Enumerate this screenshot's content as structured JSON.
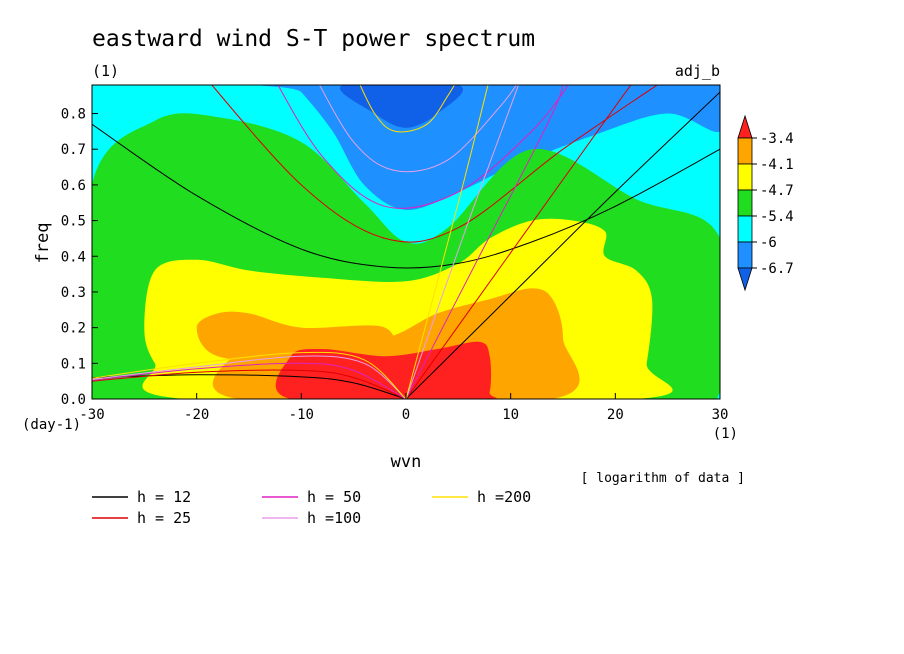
{
  "chart_data": {
    "type": "heatmap",
    "title": "eastward wind S-T power spectrum",
    "subtitle_left": "(1)",
    "subtitle_right": "adj_b",
    "xlabel": "wvn",
    "ylabel": "freq",
    "x_unit": "(1)",
    "y_unit": "(day-1)",
    "note": "[ logarithm of data ]",
    "xlim": [
      -30,
      30
    ],
    "ylim": [
      0,
      0.88
    ],
    "x_ticks": [
      "-30",
      "-20",
      "-10",
      "0",
      "10",
      "20",
      "30"
    ],
    "x_tick_values": [
      -30,
      -20,
      -10,
      0,
      10,
      20,
      30
    ],
    "y_ticks": [
      "0.0",
      "0.1",
      "0.2",
      "0.3",
      "0.4",
      "0.5",
      "0.6",
      "0.7",
      "0.8"
    ],
    "y_tick_values": [
      0,
      0.1,
      0.2,
      0.3,
      0.4,
      0.5,
      0.6,
      0.7,
      0.8
    ],
    "colorbar": {
      "levels": [
        "-3.4",
        "-4.1",
        "-4.7",
        "-5.4",
        "-6",
        "-6.7"
      ],
      "level_values": [
        -3.4,
        -4.1,
        -4.7,
        -5.4,
        -6.0,
        -6.7
      ],
      "colors": [
        "#ff2020",
        "#ffa500",
        "#ffff00",
        "#20dd20",
        "#00ffff",
        "#1e90ff",
        "#1060e8"
      ]
    },
    "regions": [
      {
        "level_index": 1,
        "color": "#00ffff",
        "points": [
          [
            -30,
            0.88
          ],
          [
            30,
            0.88
          ],
          [
            30,
            0.45
          ],
          [
            22,
            0.56
          ],
          [
            12,
            0.64
          ],
          [
            4,
            0.48
          ],
          [
            0,
            0.44
          ],
          [
            -5,
            0.52
          ],
          [
            -15,
            0.7
          ],
          [
            -24,
            0.7
          ],
          [
            -30,
            0.6
          ]
        ]
      },
      {
        "level_index": 2,
        "color": "#1e90ff",
        "points": [
          [
            -11,
            0.88
          ],
          [
            30,
            0.88
          ],
          [
            30,
            0.75
          ],
          [
            25,
            0.8
          ],
          [
            18,
            0.74
          ],
          [
            10,
            0.65
          ],
          [
            5,
            0.58
          ],
          [
            0,
            0.53
          ],
          [
            -4,
            0.6
          ],
          [
            -7,
            0.75
          ],
          [
            -10,
            0.86
          ]
        ]
      },
      {
        "level_index": 3,
        "color": "#1060e8",
        "points": [
          [
            -6,
            0.88
          ],
          [
            5,
            0.88
          ],
          [
            3,
            0.8
          ],
          [
            0,
            0.76
          ],
          [
            -3,
            0.8
          ]
        ]
      },
      {
        "level_index": 3,
        "color": "#1e90ff",
        "points": [
          [
            18,
            0.88
          ],
          [
            23,
            0.88
          ],
          [
            20,
            0.85
          ]
        ]
      },
      {
        "level_index": 4,
        "color": "#20dd20",
        "points": [
          [
            -30,
            0
          ],
          [
            22,
            0
          ],
          [
            30,
            0.02
          ],
          [
            30,
            0.45
          ],
          [
            22,
            0.56
          ],
          [
            12,
            0.7
          ],
          [
            4,
            0.48
          ],
          [
            0,
            0.44
          ],
          [
            -4,
            0.55
          ],
          [
            -10,
            0.72
          ],
          [
            -18,
            0.79
          ],
          [
            -24,
            0.78
          ],
          [
            -30,
            0.6
          ]
        ]
      },
      {
        "level_index": 5,
        "color": "#ffff00",
        "points": [
          [
            -21,
            0
          ],
          [
            22,
            0
          ],
          [
            23,
            0.1
          ],
          [
            23.5,
            0.28
          ],
          [
            22,
            0.36
          ],
          [
            19,
            0.4
          ],
          [
            19,
            0.47
          ],
          [
            16,
            0.5
          ],
          [
            12,
            0.5
          ],
          [
            8,
            0.45
          ],
          [
            5,
            0.38
          ],
          [
            0,
            0.33
          ],
          [
            -8,
            0.34
          ],
          [
            -15,
            0.36
          ],
          [
            -20,
            0.39
          ],
          [
            -24,
            0.36
          ],
          [
            -25,
            0.2
          ],
          [
            -24,
            0.1
          ]
        ]
      },
      {
        "level_index": 6,
        "color": "#ffa500",
        "points": [
          [
            -16,
            0.13
          ],
          [
            -10,
            0.14
          ],
          [
            -2,
            0.17
          ],
          [
            3,
            0.24
          ],
          [
            8,
            0.28
          ],
          [
            12,
            0.31
          ],
          [
            14,
            0.28
          ],
          [
            15,
            0.17
          ],
          [
            14,
            0
          ],
          [
            -16,
            0
          ]
        ]
      },
      {
        "level_index": 7,
        "color": "#ffa500",
        "points": [
          [
            -20,
            0.2
          ],
          [
            -18,
            0.24
          ],
          [
            -15,
            0.24
          ],
          [
            -10,
            0.2
          ],
          [
            -2,
            0.2
          ],
          [
            -2,
            0.1
          ],
          [
            -10,
            0.1
          ],
          [
            -18,
            0.12
          ]
        ]
      },
      {
        "level_index": 8,
        "color": "#ff2020",
        "points": [
          [
            -11,
            0.12
          ],
          [
            -8,
            0.14
          ],
          [
            -2,
            0.12
          ],
          [
            3,
            0.14
          ],
          [
            7,
            0.16
          ],
          [
            8,
            0.12
          ],
          [
            8,
            0.02
          ],
          [
            7,
            0
          ],
          [
            -11,
            0
          ]
        ]
      }
    ],
    "curves": [
      {
        "name": "h = 12",
        "color": "#000000",
        "points": [
          [
            -30,
            0.77
          ],
          [
            -20,
            0.57
          ],
          [
            -10,
            0.42
          ],
          [
            -2,
            0.37
          ],
          [
            5,
            0.38
          ],
          [
            12,
            0.44
          ],
          [
            20,
            0.54
          ],
          [
            30,
            0.7
          ]
        ]
      },
      {
        "name": "h = 12",
        "color": "#000000",
        "points": [
          [
            -30,
            0.06
          ],
          [
            -20,
            0.068
          ],
          [
            -10,
            0.062
          ],
          [
            -5,
            0.045
          ],
          [
            0,
            0
          ]
        ]
      },
      {
        "name": "h = 12",
        "color": "#000000",
        "points": [
          [
            0,
            0
          ],
          [
            10,
            0.29
          ],
          [
            20,
            0.58
          ],
          [
            30,
            0.86
          ]
        ]
      },
      {
        "name": "h = 25",
        "color": "#dd0000",
        "points": [
          [
            -20,
            0.93
          ],
          [
            -10,
            0.6
          ],
          [
            -2,
            0.45
          ],
          [
            5,
            0.48
          ],
          [
            15,
            0.7
          ],
          [
            25,
            0.9
          ]
        ]
      },
      {
        "name": "h = 25",
        "color": "#dd0000",
        "points": [
          [
            -30,
            0.05
          ],
          [
            -20,
            0.075
          ],
          [
            -10,
            0.08
          ],
          [
            -5,
            0.06
          ],
          [
            0,
            0
          ]
        ]
      },
      {
        "name": "h = 25",
        "color": "#dd0000",
        "points": [
          [
            0,
            0
          ],
          [
            10,
            0.41
          ],
          [
            20,
            0.82
          ],
          [
            22,
            0.9
          ]
        ]
      },
      {
        "name": "h = 50",
        "color": "#e020c0",
        "points": [
          [
            -13,
            0.92
          ],
          [
            -8,
            0.68
          ],
          [
            -2,
            0.54
          ],
          [
            5,
            0.58
          ],
          [
            12,
            0.75
          ],
          [
            16,
            0.9
          ]
        ]
      },
      {
        "name": "h = 50",
        "color": "#e020c0",
        "points": [
          [
            0,
            0
          ],
          [
            7,
            0.4
          ],
          [
            14,
            0.8
          ],
          [
            15,
            0.9
          ]
        ]
      },
      {
        "name": "h = 50",
        "color": "#e020c0",
        "points": [
          [
            -30,
            0.052
          ],
          [
            -20,
            0.085
          ],
          [
            -10,
            0.1
          ],
          [
            -5,
            0.08
          ],
          [
            0,
            0
          ]
        ]
      },
      {
        "name": "h =100",
        "color": "#e8a0e8",
        "points": [
          [
            -9,
            0.92
          ],
          [
            -5,
            0.72
          ],
          [
            -1,
            0.64
          ],
          [
            4,
            0.67
          ],
          [
            9,
            0.82
          ],
          [
            11,
            0.9
          ]
        ]
      },
      {
        "name": "h =100",
        "color": "#e8a0e8",
        "points": [
          [
            0,
            0
          ],
          [
            6,
            0.5
          ],
          [
            11,
            0.9
          ]
        ]
      },
      {
        "name": "h =100",
        "color": "#e8a0e8",
        "points": [
          [
            -30,
            0.055
          ],
          [
            -20,
            0.09
          ],
          [
            -10,
            0.12
          ],
          [
            -4,
            0.1
          ],
          [
            0,
            0
          ]
        ]
      },
      {
        "name": "h =200",
        "color": "#ffe000",
        "points": [
          [
            -5,
            0.92
          ],
          [
            -3,
            0.8
          ],
          [
            -1,
            0.75
          ],
          [
            2,
            0.77
          ],
          [
            4,
            0.85
          ],
          [
            5,
            0.9
          ]
        ]
      },
      {
        "name": "h =200",
        "color": "#ffe000",
        "points": [
          [
            0,
            0
          ],
          [
            5,
            0.55
          ],
          [
            8,
            0.9
          ]
        ]
      },
      {
        "name": "h =200",
        "color": "#ffe000",
        "points": [
          [
            -30,
            0.058
          ],
          [
            -20,
            0.1
          ],
          [
            -10,
            0.13
          ],
          [
            -4,
            0.11
          ],
          [
            0,
            0
          ]
        ]
      }
    ],
    "legend": [
      {
        "label": "h = 12",
        "color": "#000000"
      },
      {
        "label": "h = 25",
        "color": "#dd0000"
      },
      {
        "label": "h = 50",
        "color": "#e020c0"
      },
      {
        "label": "h =100",
        "color": "#e8a0e8"
      },
      {
        "label": "h =200",
        "color": "#ffe000"
      }
    ],
    "legend_placement": "bottom-left",
    "grid": false
  }
}
